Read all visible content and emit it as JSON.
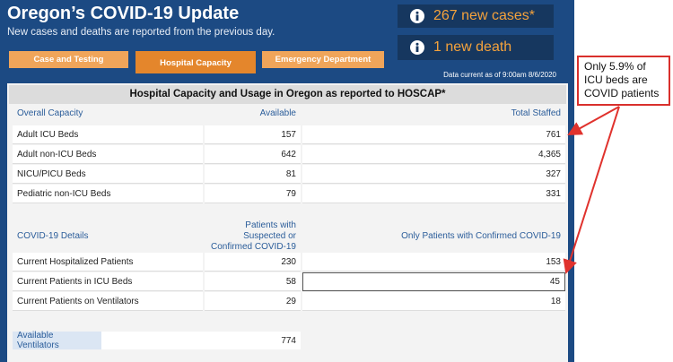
{
  "header": {
    "title": "Oregon’s COVID-19 Update",
    "subtitle": "New cases and deaths are reported from the previous day."
  },
  "stats": [
    "267 new cases*",
    "1 new death"
  ],
  "tabs": [
    "Case and Testing",
    "Hospital Capacity",
    "Emergency Department"
  ],
  "active_tab": 1,
  "data_current": "Data current as of 9:00am 8/6/2020",
  "table": {
    "title": "Hospital Capacity and Usage in Oregon as reported to HOSCAP*",
    "capacity": {
      "headers": [
        "Overall Capacity",
        "Available",
        "Total Staffed"
      ],
      "rows": [
        [
          "Adult ICU Beds",
          "157",
          "761"
        ],
        [
          "Adult non-ICU Beds",
          "642",
          "4,365"
        ],
        [
          "NICU/PICU Beds",
          "81",
          "327"
        ],
        [
          "Pediatric non-ICU Beds",
          "79",
          "331"
        ]
      ]
    },
    "covid": {
      "headers": [
        "COVID-19 Details",
        "Patients with Suspected or Confirmed COVID-19",
        "Only Patients with Confirmed COVID-19"
      ],
      "rows": [
        [
          "Current Hospitalized Patients",
          "230",
          "153"
        ],
        [
          "Current Patients in ICU Beds",
          "58",
          "45"
        ],
        [
          "Current Patients on Ventilators",
          "29",
          "18"
        ]
      ]
    },
    "ventilators": {
      "label": "Available Ventilators",
      "value": "774"
    }
  },
  "annotation": "Only 5.9% of ICU beds are COVID patients"
}
